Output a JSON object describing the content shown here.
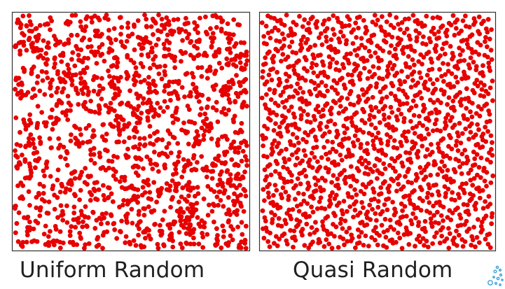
{
  "chart_data": [
    {
      "type": "scatter",
      "title": "",
      "xlabel": "",
      "ylabel": "",
      "caption": "Uniform Random",
      "sampling": "uniform-random",
      "approx_point_count": 1500,
      "xlim": [
        0,
        1
      ],
      "ylim": [
        0,
        1
      ],
      "grid": false,
      "point_color": "#e60000",
      "frame_color": "#333333",
      "x": [],
      "y": []
    },
    {
      "type": "scatter",
      "title": "",
      "xlabel": "",
      "ylabel": "",
      "caption": "Quasi Random",
      "sampling": "low-discrepancy",
      "approx_point_count": 1500,
      "xlim": [
        0,
        1
      ],
      "ylim": [
        0,
        1
      ],
      "grid": false,
      "point_color": "#e60000",
      "frame_color": "#333333",
      "x": [],
      "y": []
    }
  ],
  "logo": {
    "icon": "sparkle-logo-icon",
    "color": "#3aa0d8"
  }
}
